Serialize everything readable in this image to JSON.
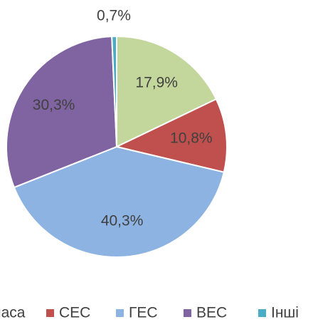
{
  "chart_data": {
    "type": "pie",
    "categories": [
      "Біомаса",
      "СЕС",
      "ГЕС",
      "ВЕС",
      "Інші"
    ],
    "values": [
      17.9,
      10.8,
      40.3,
      30.3,
      0.7
    ],
    "value_labels": [
      "17,9%",
      "10,8%",
      "40,3%",
      "30,3%",
      "0,7%"
    ],
    "colors": [
      "#c3d69b",
      "#c0504d",
      "#8db3e2",
      "#8064a2",
      "#4bacc6"
    ],
    "legend": "bottom"
  }
}
